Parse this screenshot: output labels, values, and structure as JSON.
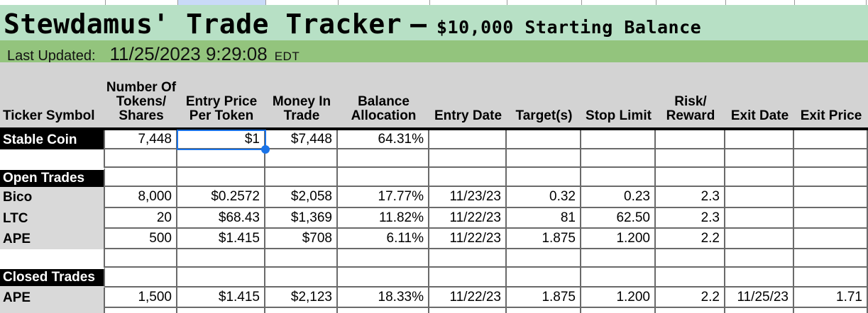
{
  "title_bar": {
    "title": "Stewdamus' Trade Tracker",
    "separator": "–",
    "subtitle": "$10,000 Starting Balance"
  },
  "updated_bar": {
    "label": "Last Updated:",
    "datetime": "11/25/2023 9:29:08",
    "timezone": "EDT"
  },
  "table": {
    "columns": [
      {
        "id": "ticker",
        "label": "Ticker Symbol"
      },
      {
        "id": "tokens",
        "label": "Number Of\nTokens/\nShares"
      },
      {
        "id": "entry-price",
        "label": "Entry Price\nPer Token"
      },
      {
        "id": "money-in",
        "label": "Money In\nTrade"
      },
      {
        "id": "balance-alloc",
        "label": "Balance\nAllocation"
      },
      {
        "id": "entry-date",
        "label": "Entry Date"
      },
      {
        "id": "targets",
        "label": "Target(s)"
      },
      {
        "id": "stop-limit",
        "label": "Stop Limit"
      },
      {
        "id": "risk-reward",
        "label": "Risk/\nReward"
      },
      {
        "id": "exit-date",
        "label": "Exit Date"
      },
      {
        "id": "exit-price",
        "label": "Exit Price"
      }
    ],
    "rows": [
      {
        "ticker": "Stable Coin",
        "style": "black",
        "values": [
          "7,448",
          "$1",
          "$7,448",
          "64.31%",
          "",
          "",
          "",
          "",
          "",
          ""
        ]
      },
      {
        "ticker": "",
        "style": "white",
        "values": [
          "",
          "",
          "",
          "",
          "",
          "",
          "",
          "",
          "",
          ""
        ]
      },
      {
        "ticker": "Open Trades",
        "style": "section",
        "values": [
          "",
          "",
          "",
          "",
          "",
          "",
          "",
          "",
          "",
          ""
        ]
      },
      {
        "ticker": "Bico",
        "style": "gray",
        "values": [
          "8,000",
          "$0.2572",
          "$2,058",
          "17.77%",
          "11/23/23",
          "0.32",
          "0.23",
          "2.3",
          "",
          ""
        ]
      },
      {
        "ticker": "LTC",
        "style": "gray",
        "values": [
          "20",
          "$68.43",
          "$1,369",
          "11.82%",
          "11/22/23",
          "81",
          "62.50",
          "2.3",
          "",
          ""
        ]
      },
      {
        "ticker": "APE",
        "style": "gray",
        "values": [
          "500",
          "$1.415",
          "$708",
          "6.11%",
          "11/22/23",
          "1.875",
          "1.200",
          "2.2",
          "",
          ""
        ]
      },
      {
        "ticker": "",
        "style": "white",
        "values": [
          "",
          "",
          "",
          "",
          "",
          "",
          "",
          "",
          "",
          ""
        ]
      },
      {
        "ticker": "Closed Trades",
        "style": "section",
        "values": [
          "",
          "",
          "",
          "",
          "",
          "",
          "",
          "",
          "",
          ""
        ]
      },
      {
        "ticker": "APE",
        "style": "gray",
        "values": [
          "1,500",
          "$1.415",
          "$2,123",
          "18.33%",
          "11/22/23",
          "1.875",
          "1.200",
          "2.2",
          "11/25/23",
          "1.71"
        ]
      },
      {
        "ticker": "",
        "style": "stub",
        "values": [
          "",
          "",
          "",
          "",
          "",
          "",
          "",
          "",
          "",
          ""
        ]
      }
    ],
    "selection": {
      "row_index": 0,
      "column_index": 2,
      "value": "$1"
    }
  },
  "colors": {
    "mint": "#b7e0c5",
    "green": "#93c47d",
    "header_gray": "#d3d3d3",
    "ticker_gray": "#d9d9d9",
    "gridline": "#6a6a6a",
    "selection_blue": "#1a73e8",
    "column_highlight": "#c9daf8"
  }
}
